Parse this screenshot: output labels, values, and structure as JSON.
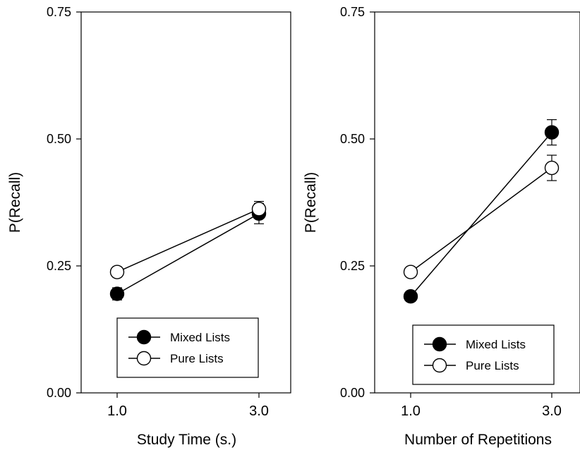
{
  "chart_data": [
    {
      "type": "line",
      "xlabel": "Study Time (s.)",
      "ylabel": "P(Recall)",
      "categories": [
        "1.0",
        "3.0"
      ],
      "yticks": [
        "0.00",
        "0.25",
        "0.50",
        "0.75"
      ],
      "ylim": [
        0,
        0.75
      ],
      "grid": false,
      "legend_position": "bottom-center",
      "series": [
        {
          "name": "Mixed Lists",
          "marker": "filled-circle",
          "color": "#000000",
          "values": [
            0.195,
            0.353
          ],
          "errors": [
            0.012,
            0.02
          ]
        },
        {
          "name": "Pure Lists",
          "marker": "open-circle",
          "color": "#000000",
          "values": [
            0.238,
            0.362
          ],
          "errors": [
            0.01,
            0.015
          ]
        }
      ]
    },
    {
      "type": "line",
      "xlabel": "Number of Repetitions",
      "ylabel": "P(Recall)",
      "categories": [
        "1.0",
        "3.0"
      ],
      "yticks": [
        "0.00",
        "0.25",
        "0.50",
        "0.75"
      ],
      "ylim": [
        0,
        0.75
      ],
      "grid": false,
      "legend_position": "bottom-center",
      "series": [
        {
          "name": "Mixed Lists",
          "marker": "filled-circle",
          "color": "#000000",
          "values": [
            0.19,
            0.513
          ],
          "errors": [
            0.01,
            0.025
          ]
        },
        {
          "name": "Pure Lists",
          "marker": "open-circle",
          "color": "#000000",
          "values": [
            0.238,
            0.443
          ],
          "errors": [
            0.008,
            0.025
          ]
        }
      ]
    }
  ]
}
